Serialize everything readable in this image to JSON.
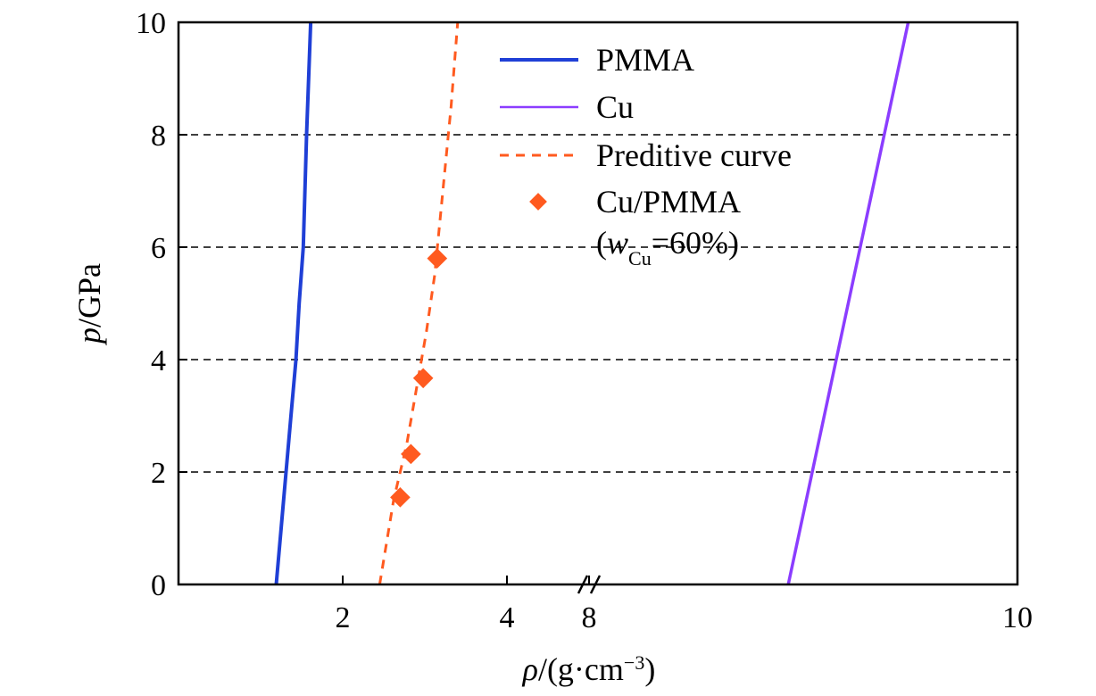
{
  "chart_data": {
    "type": "line",
    "xlabel_prefix": "ρ",
    "xlabel_unit": "/(g·cm",
    "xlabel_exp": "−3",
    "xlabel_close": ")",
    "ylabel_prefix": "p",
    "ylabel_unit": "/GPa",
    "ylim": [
      0,
      10
    ],
    "y_ticks": [
      "0",
      "2",
      "4",
      "6",
      "8",
      "10"
    ],
    "x_ticks": [
      "2",
      "4",
      "8",
      "10"
    ],
    "x_axis_break": true,
    "x_left_range": [
      0,
      5
    ],
    "x_right_range": [
      8,
      10
    ],
    "grid": "horizontal dashed",
    "legend_position": "top-right",
    "series": [
      {
        "name": "PMMA",
        "kind": "line",
        "color": "#1f3fd6",
        "x": [
          1.19,
          1.25,
          1.31,
          1.37,
          1.43,
          1.47,
          1.52,
          1.56,
          1.61
        ],
        "y": [
          0,
          1,
          2,
          3,
          4,
          5,
          6,
          8,
          10
        ]
      },
      {
        "name": "Cu",
        "kind": "line",
        "color": "#8b3dff",
        "x": [
          8.93,
          9.04,
          9.15,
          9.26,
          9.37,
          9.49,
          9.48,
          9.41,
          9.48
        ],
        "y": [
          0,
          2,
          4,
          6,
          8,
          10,
          10,
          10,
          10
        ]
      },
      {
        "name": "Preditive curve",
        "kind": "dashed",
        "color": "#ff5a1f",
        "x": [
          2.45,
          2.62,
          2.78,
          2.9,
          3.02,
          3.12,
          3.22,
          3.32,
          3.4
        ],
        "y": [
          0,
          1.5,
          2.5,
          3.5,
          4.5,
          5.5,
          7,
          8.5,
          10
        ]
      },
      {
        "name": "Cu/PMMA",
        "name_line2_open": "(",
        "name_line2_var": "w",
        "name_line2_sub": "Cu",
        "name_line2_rest": "=60%)",
        "kind": "points",
        "color": "#ff5a1f",
        "x": [
          2.7,
          2.83,
          2.98,
          3.15
        ],
        "y": [
          1.55,
          2.32,
          3.67,
          5.8
        ]
      }
    ]
  }
}
